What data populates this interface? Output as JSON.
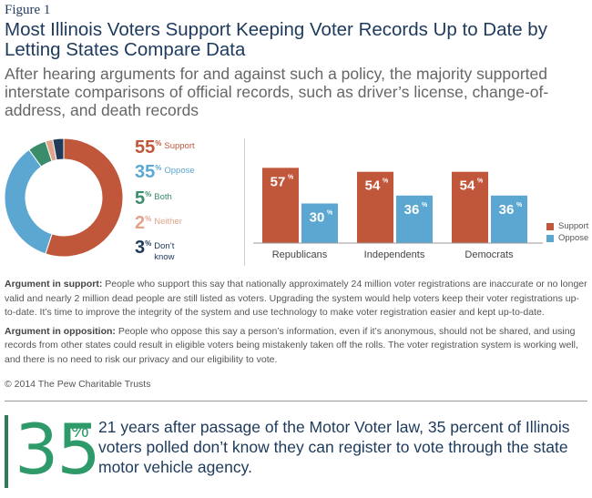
{
  "figure_label": "Figure 1",
  "title": "Most Illinois Voters Support Keeping Voter Records Up to Date by Letting States Compare Data",
  "subtitle": "After hearing arguments for and against such a policy, the majority supported interstate comparisons of official records, such as driver’s license, change-of-address, and death records",
  "colors": {
    "support": "#c0573b",
    "oppose": "#5ba7d1",
    "both": "#3a8c6a",
    "neither": "#e0a58c",
    "dont_know": "#203a5a",
    "title": "#1d3a5c",
    "callout": "#2e9a69"
  },
  "chart_data": [
    {
      "type": "pie",
      "donut": true,
      "slices": [
        {
          "label": "Support",
          "value": 55,
          "value_label": "55",
          "color": "#c0573b"
        },
        {
          "label": "Oppose",
          "value": 35,
          "value_label": "35",
          "color": "#5ba7d1"
        },
        {
          "label": "Both",
          "value": 5,
          "value_label": "5",
          "color": "#3a8c6a"
        },
        {
          "label": "Neither",
          "value": 2,
          "value_label": "2",
          "color": "#e0a58c"
        },
        {
          "label": "Don’t know",
          "value": 3,
          "value_label": "3",
          "color": "#203a5a"
        }
      ],
      "pct_suffix": "%"
    },
    {
      "type": "bar",
      "categories": [
        "Republicans",
        "Independents",
        "Democrats"
      ],
      "series": [
        {
          "name": "Support",
          "values": [
            57,
            54,
            54
          ],
          "color": "#c0573b"
        },
        {
          "name": "Oppose",
          "values": [
            30,
            36,
            36
          ],
          "color": "#5ba7d1"
        }
      ],
      "ylim": [
        0,
        60
      ],
      "legend": "right",
      "pct_suffix": "%"
    }
  ],
  "notes": {
    "support_heading": "Argument in support:",
    "support_text": " People who support this say that nationally approximately 24 million voter registrations are inaccurate or no longer valid and nearly 2 million dead people are still listed as voters. Upgrading the system would help voters keep their voter registrations up-to-date. It’s time to improve the integrity of the system and use technology to make voter registration easier and kept up-to-date.",
    "oppose_heading": "Argument in opposition:",
    "oppose_text": " People who oppose this say a person’s information, even if it’s anonymous, should not be shared, and using records from other states could result in eligible voters being mistakenly taken off the rolls. The voter registration system is working well, and there is no need to risk our privacy and our eligibility to vote."
  },
  "copyright": "© 2014 The Pew Charitable Trusts",
  "callout": {
    "number": "35",
    "pct": "%",
    "text": "21 years after passage of the Motor Voter law, 35 percent of Illinois voters polled don’t know they can register to vote through the state motor vehicle agency."
  }
}
